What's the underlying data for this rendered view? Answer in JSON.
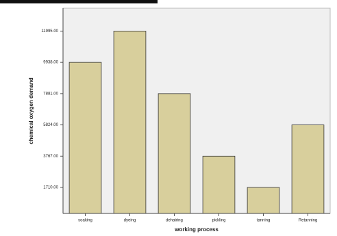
{
  "chart_data": {
    "type": "bar",
    "xlabel": "working process",
    "ylabel": "chemical oxygen demand",
    "categories": [
      "soaking",
      "dyeing",
      "dehairing",
      "pickling",
      "tanning",
      "Retanning"
    ],
    "values": [
      9938,
      11995,
      7881,
      3767,
      1710,
      5824
    ],
    "color": "#d8cf9c",
    "ylim": [
      0,
      13500
    ],
    "yticks": [
      {
        "value": 1710,
        "label": "1710.00"
      },
      {
        "value": 3767,
        "label": "3767.00"
      },
      {
        "value": 5824,
        "label": "5824.00"
      },
      {
        "value": 7881,
        "label": "7881.00"
      },
      {
        "value": 9938,
        "label": "9938.00"
      },
      {
        "value": 11995,
        "label": "11995.00"
      }
    ]
  }
}
